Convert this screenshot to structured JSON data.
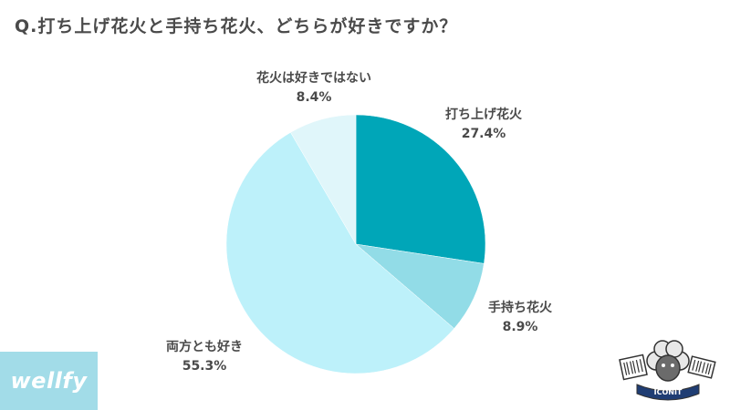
{
  "page": {
    "question": "Q.打ち上げ花火と手持ち花火、どちらが好きですか？"
  },
  "branding": {
    "logo_text": "wellfy",
    "logo_bg": "#a2dce8",
    "mascot_text": "ICONIT",
    "mascot_icon": "sheep-mascot-icon"
  },
  "chart_data": {
    "type": "pie",
    "title": "Q.打ち上げ花火と手持ち花火、どちらが好きですか？",
    "slices": [
      {
        "label": "打ち上げ花火",
        "value": 27.4,
        "value_label": "27.4%",
        "color": "#00a6b8"
      },
      {
        "label": "手持ち花火",
        "value": 8.9,
        "value_label": "8.9%",
        "color": "#92dce7"
      },
      {
        "label": "両方とも好き",
        "value": 55.3,
        "value_label": "55.3%",
        "color": "#bdf1fa"
      },
      {
        "label": "花火は好きではない",
        "value": 8.4,
        "value_label": "8.4%",
        "color": "#e0f6fa"
      }
    ],
    "start_angle": "12 o'clock",
    "direction": "clockwise",
    "legend": "none (labels outside slices)"
  }
}
